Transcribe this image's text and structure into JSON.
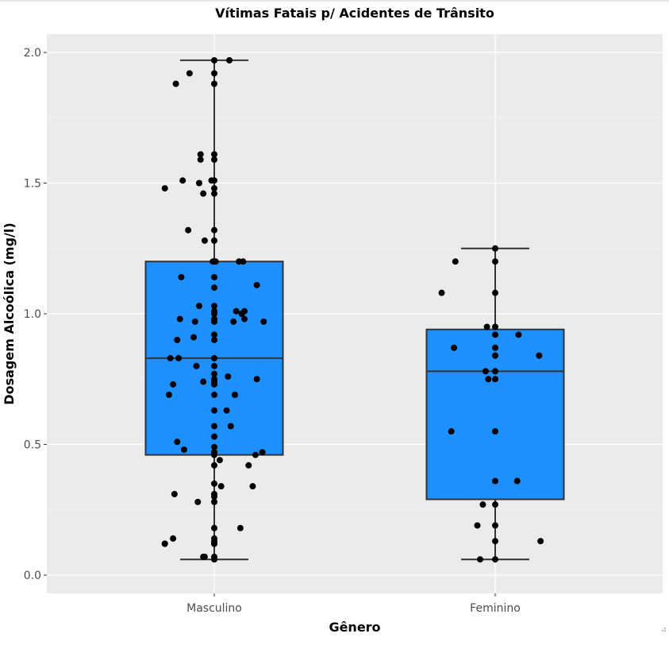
{
  "chart_data": {
    "type": "box",
    "title": "Vítimas Fatais p/ Acidentes de Trânsito",
    "xlabel": "Gênero",
    "ylabel": "Dosagem Alcoólica (mg/l)",
    "categories": [
      "Masculino",
      "Feminino"
    ],
    "ylim": [
      -0.07,
      2.07
    ],
    "yticks": [
      0.0,
      0.5,
      1.0,
      1.5,
      2.0
    ],
    "ytick_labels": [
      "0.0",
      "0.5",
      "1.0",
      "1.5",
      "2.0"
    ],
    "grid": true,
    "box_color": "#1e90ff",
    "panel_color": "#ebebeb",
    "point_color": "#000000",
    "boxes": [
      {
        "category": "Masculino",
        "whisker_low": 0.06,
        "q1": 0.46,
        "median": 0.83,
        "q3": 1.2,
        "whisker_high": 1.97
      },
      {
        "category": "Feminino",
        "whisker_low": 0.06,
        "q1": 0.29,
        "median": 0.78,
        "q3": 0.94,
        "whisker_high": 1.25
      }
    ],
    "points": [
      {
        "category": "Masculino",
        "x_offset": -0.36,
        "values": [
          1.48,
          0.12,
          0.12
        ]
      },
      {
        "category": "Masculino",
        "x_offset": -0.33,
        "values": [
          0.69
        ]
      },
      {
        "category": "Masculino",
        "x_offset": -0.32,
        "values": [
          0.83
        ]
      },
      {
        "category": "Masculino",
        "x_offset": -0.3,
        "values": [
          0.73,
          0.14
        ]
      },
      {
        "category": "Masculino",
        "x_offset": -0.29,
        "values": [
          0.31
        ]
      },
      {
        "category": "Masculino",
        "x_offset": -0.28,
        "values": [
          1.88
        ]
      },
      {
        "category": "Masculino",
        "x_offset": -0.27,
        "values": [
          0.9,
          0.51
        ]
      },
      {
        "category": "Masculino",
        "x_offset": -0.26,
        "values": [
          0.83
        ]
      },
      {
        "category": "Masculino",
        "x_offset": -0.25,
        "values": [
          0.98
        ]
      },
      {
        "category": "Masculino",
        "x_offset": -0.24,
        "values": [
          1.14
        ]
      },
      {
        "category": "Masculino",
        "x_offset": -0.23,
        "values": [
          1.51
        ]
      },
      {
        "category": "Masculino",
        "x_offset": -0.22,
        "values": [
          0.48
        ]
      },
      {
        "category": "Masculino",
        "x_offset": -0.19,
        "values": [
          1.32
        ]
      },
      {
        "category": "Masculino",
        "x_offset": -0.18,
        "values": [
          1.92
        ]
      },
      {
        "category": "Masculino",
        "x_offset": -0.15,
        "values": [
          0.91
        ]
      },
      {
        "category": "Masculino",
        "x_offset": -0.14,
        "values": [
          0.97
        ]
      },
      {
        "category": "Masculino",
        "x_offset": -0.13,
        "values": [
          0.8
        ]
      },
      {
        "category": "Masculino",
        "x_offset": -0.12,
        "values": [
          0.28
        ]
      },
      {
        "category": "Masculino",
        "x_offset": -0.11,
        "values": [
          1.03,
          1.5
        ]
      },
      {
        "category": "Masculino",
        "x_offset": -0.1,
        "values": [
          1.61,
          1.59
        ]
      },
      {
        "category": "Masculino",
        "x_offset": -0.08,
        "values": [
          1.46,
          0.74,
          0.07
        ]
      },
      {
        "category": "Masculino",
        "x_offset": -0.07,
        "values": [
          1.28,
          0.07
        ]
      },
      {
        "category": "Masculino",
        "x_offset": -0.02,
        "values": [
          1.51
        ]
      },
      {
        "category": "Masculino",
        "x_offset": -0.01,
        "values": [
          1.2
        ]
      },
      {
        "category": "Masculino",
        "x_offset": 0.0,
        "values": [
          1.97,
          1.92,
          1.88,
          1.61,
          1.59,
          1.51,
          1.48,
          1.46,
          1.32,
          1.28,
          1.2,
          1.14,
          1.1,
          1.03,
          1.01,
          1.0,
          0.98,
          0.97,
          0.92,
          0.9,
          0.83,
          0.8,
          0.77,
          0.75,
          0.74,
          0.73,
          0.69,
          0.63,
          0.57,
          0.53,
          0.49,
          0.47,
          0.46,
          0.42,
          0.35,
          0.31,
          0.3,
          0.28,
          0.18,
          0.14,
          0.13,
          0.12,
          0.12,
          0.07,
          0.06
        ]
      },
      {
        "category": "Masculino",
        "x_offset": 0.01,
        "values": [
          1.2
        ]
      },
      {
        "category": "Masculino",
        "x_offset": 0.04,
        "values": [
          0.44
        ]
      },
      {
        "category": "Masculino",
        "x_offset": 0.05,
        "values": [
          0.34
        ]
      },
      {
        "category": "Masculino",
        "x_offset": 0.09,
        "values": [
          0.63
        ]
      },
      {
        "category": "Masculino",
        "x_offset": 0.1,
        "values": [
          0.76
        ]
      },
      {
        "category": "Masculino",
        "x_offset": 0.11,
        "values": [
          1.97
        ]
      },
      {
        "category": "Masculino",
        "x_offset": 0.12,
        "values": [
          0.57
        ]
      },
      {
        "category": "Masculino",
        "x_offset": 0.14,
        "values": [
          0.97
        ]
      },
      {
        "category": "Masculino",
        "x_offset": 0.15,
        "values": [
          0.69
        ]
      },
      {
        "category": "Masculino",
        "x_offset": 0.16,
        "values": [
          1.01
        ]
      },
      {
        "category": "Masculino",
        "x_offset": 0.18,
        "values": [
          1.2
        ]
      },
      {
        "category": "Masculino",
        "x_offset": 0.19,
        "values": [
          0.18
        ]
      },
      {
        "category": "Masculino",
        "x_offset": 0.2,
        "values": [
          1.0
        ]
      },
      {
        "category": "Masculino",
        "x_offset": 0.21,
        "values": [
          1.2
        ]
      },
      {
        "category": "Masculino",
        "x_offset": 0.22,
        "values": [
          0.98,
          1.01
        ]
      },
      {
        "category": "Masculino",
        "x_offset": 0.25,
        "values": [
          0.42
        ]
      },
      {
        "category": "Masculino",
        "x_offset": 0.28,
        "values": [
          0.34
        ]
      },
      {
        "category": "Masculino",
        "x_offset": 0.3,
        "values": [
          0.46
        ]
      },
      {
        "category": "Masculino",
        "x_offset": 0.31,
        "values": [
          0.75,
          1.11
        ]
      },
      {
        "category": "Masculino",
        "x_offset": 0.35,
        "values": [
          0.47
        ]
      },
      {
        "category": "Masculino",
        "x_offset": 0.36,
        "values": [
          0.97
        ]
      },
      {
        "category": "Feminino",
        "x_offset": -0.39,
        "values": [
          1.08
        ]
      },
      {
        "category": "Feminino",
        "x_offset": -0.32,
        "values": [
          0.55
        ]
      },
      {
        "category": "Feminino",
        "x_offset": -0.3,
        "values": [
          0.87
        ]
      },
      {
        "category": "Feminino",
        "x_offset": -0.29,
        "values": [
          1.2
        ]
      },
      {
        "category": "Feminino",
        "x_offset": -0.13,
        "values": [
          0.19
        ]
      },
      {
        "category": "Feminino",
        "x_offset": -0.11,
        "values": [
          0.06
        ]
      },
      {
        "category": "Feminino",
        "x_offset": -0.09,
        "values": [
          0.27
        ]
      },
      {
        "category": "Feminino",
        "x_offset": -0.07,
        "values": [
          0.78
        ]
      },
      {
        "category": "Feminino",
        "x_offset": -0.06,
        "values": [
          0.95
        ]
      },
      {
        "category": "Feminino",
        "x_offset": -0.05,
        "values": [
          0.75
        ]
      },
      {
        "category": "Feminino",
        "x_offset": 0.0,
        "values": [
          1.25,
          1.2,
          1.08,
          0.95,
          0.92,
          0.87,
          0.84,
          0.78,
          0.75,
          0.55,
          0.36,
          0.27,
          0.19,
          0.13,
          0.06
        ]
      },
      {
        "category": "Feminino",
        "x_offset": 0.16,
        "values": [
          0.36
        ]
      },
      {
        "category": "Feminino",
        "x_offset": 0.17,
        "values": [
          0.92
        ]
      },
      {
        "category": "Feminino",
        "x_offset": 0.32,
        "values": [
          0.84
        ]
      },
      {
        "category": "Feminino",
        "x_offset": 0.33,
        "values": [
          0.13
        ]
      }
    ]
  }
}
